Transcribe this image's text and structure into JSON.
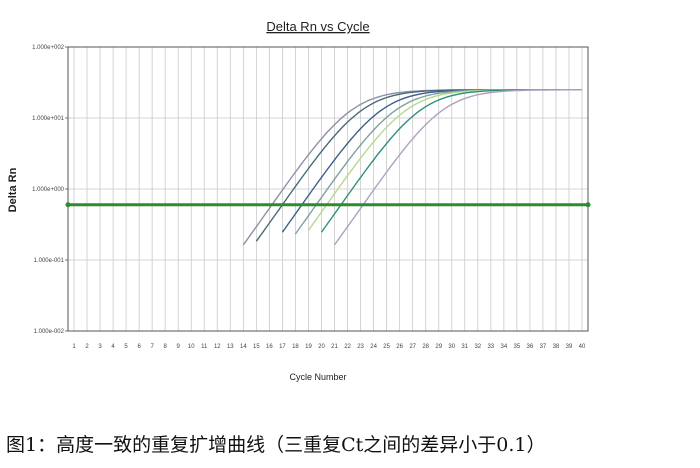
{
  "chart_data": {
    "type": "line",
    "title": "Delta Rn vs Cycle",
    "xlabel": "Cycle Number",
    "ylabel": "Delta Rn",
    "xlim": [
      1,
      40
    ],
    "ylim": [
      0.01,
      100
    ],
    "yscale": "log",
    "yticks": [
      "1.000e-002",
      "1.000e-001",
      "1.000e+000",
      "1.000e+001",
      "1.000e+002"
    ],
    "xticks": [
      "1",
      "2",
      "3",
      "4",
      "5",
      "6",
      "7",
      "8",
      "9",
      "10",
      "11",
      "12",
      "13",
      "14",
      "15",
      "16",
      "17",
      "18",
      "19",
      "20",
      "21",
      "22",
      "23",
      "24",
      "25",
      "26",
      "27",
      "28",
      "29",
      "30",
      "31",
      "32",
      "33",
      "34",
      "35",
      "36",
      "37",
      "38",
      "39",
      "40"
    ],
    "grid": true,
    "threshold": {
      "value": 0.6,
      "color": "#2e8b2e"
    },
    "series": [
      {
        "color": "#8f8fa8",
        "mid": 22.2,
        "start": 14
      },
      {
        "color": "#4a6a7a",
        "mid": 23.0,
        "start": 15
      },
      {
        "color": "#3b5f8a",
        "mid": 24.5,
        "start": 17
      },
      {
        "color": "#7fa0a0",
        "mid": 25.6,
        "start": 18
      },
      {
        "color": "#b8d88a",
        "mid": 26.4,
        "start": 19
      },
      {
        "color": "#2f8f7a",
        "mid": 27.5,
        "start": 20
      },
      {
        "color": "#b0a0c0",
        "mid": 29.2,
        "start": 21
      }
    ]
  },
  "caption": {
    "text": "图1：高度一致的重复扩增曲线（三重复Ct之间的差异小于0.1）"
  }
}
